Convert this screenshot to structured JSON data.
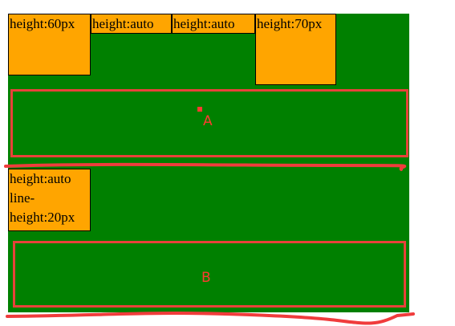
{
  "boxes": {
    "box1": "height:60px",
    "box2": "height:auto",
    "box3": "height:auto",
    "box4": "height:70px",
    "box5": [
      "height:auto",
      "line-",
      "height:20px"
    ]
  },
  "markers": {
    "a": "A",
    "b": "B"
  },
  "colors": {
    "container": "#008000",
    "box": "#ffa500",
    "annotation": "#e8423a"
  }
}
